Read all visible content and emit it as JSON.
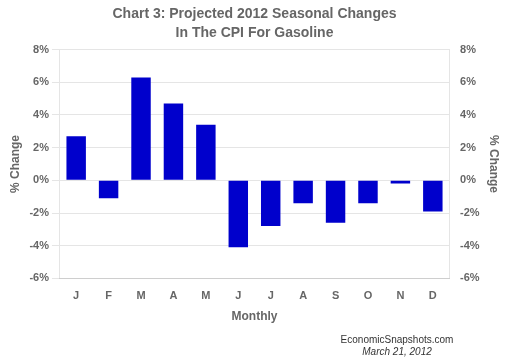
{
  "chart_data": {
    "type": "bar",
    "title": "Chart 3: Projected 2012 Seasonal Changes",
    "subtitle": "In The CPI For Gasoline",
    "x_label": "Monthly",
    "y_label": "% Change",
    "y2_label": "% Change",
    "annotations": [
      "EconomicSnapshots.com",
      "March 21, 2012"
    ],
    "categories": [
      "J",
      "F",
      "M",
      "A",
      "M",
      "J",
      "J",
      "A",
      "S",
      "O",
      "N",
      "D"
    ],
    "values": [
      2.7,
      -1.1,
      6.3,
      4.7,
      3.4,
      -4.1,
      -2.8,
      -1.4,
      -2.6,
      -1.4,
      -0.2,
      -1.9
    ],
    "color": "#0000CC",
    "ylim": [
      -6,
      8
    ],
    "yticks": [
      {
        "value": -6,
        "label": "-6%"
      },
      {
        "value": -4,
        "label": "-4%"
      },
      {
        "value": -2,
        "label": "-2%"
      },
      {
        "value": 0,
        "label": "0%"
      },
      {
        "value": 2,
        "label": "2%"
      },
      {
        "value": 4,
        "label": "4%"
      },
      {
        "value": 6,
        "label": "6%"
      },
      {
        "value": 8,
        "label": "8%"
      }
    ],
    "y2lim": [
      -6,
      8
    ],
    "y2ticks": [
      {
        "value": -6,
        "label": "-6%"
      },
      {
        "value": -4,
        "label": "-4%"
      },
      {
        "value": -2,
        "label": "-2%"
      },
      {
        "value": 0,
        "label": "0%"
      },
      {
        "value": 2,
        "label": "2%"
      },
      {
        "value": 4,
        "label": "4%"
      },
      {
        "value": 6,
        "label": "6%"
      },
      {
        "value": 8,
        "label": "8%"
      }
    ],
    "grid": true
  }
}
